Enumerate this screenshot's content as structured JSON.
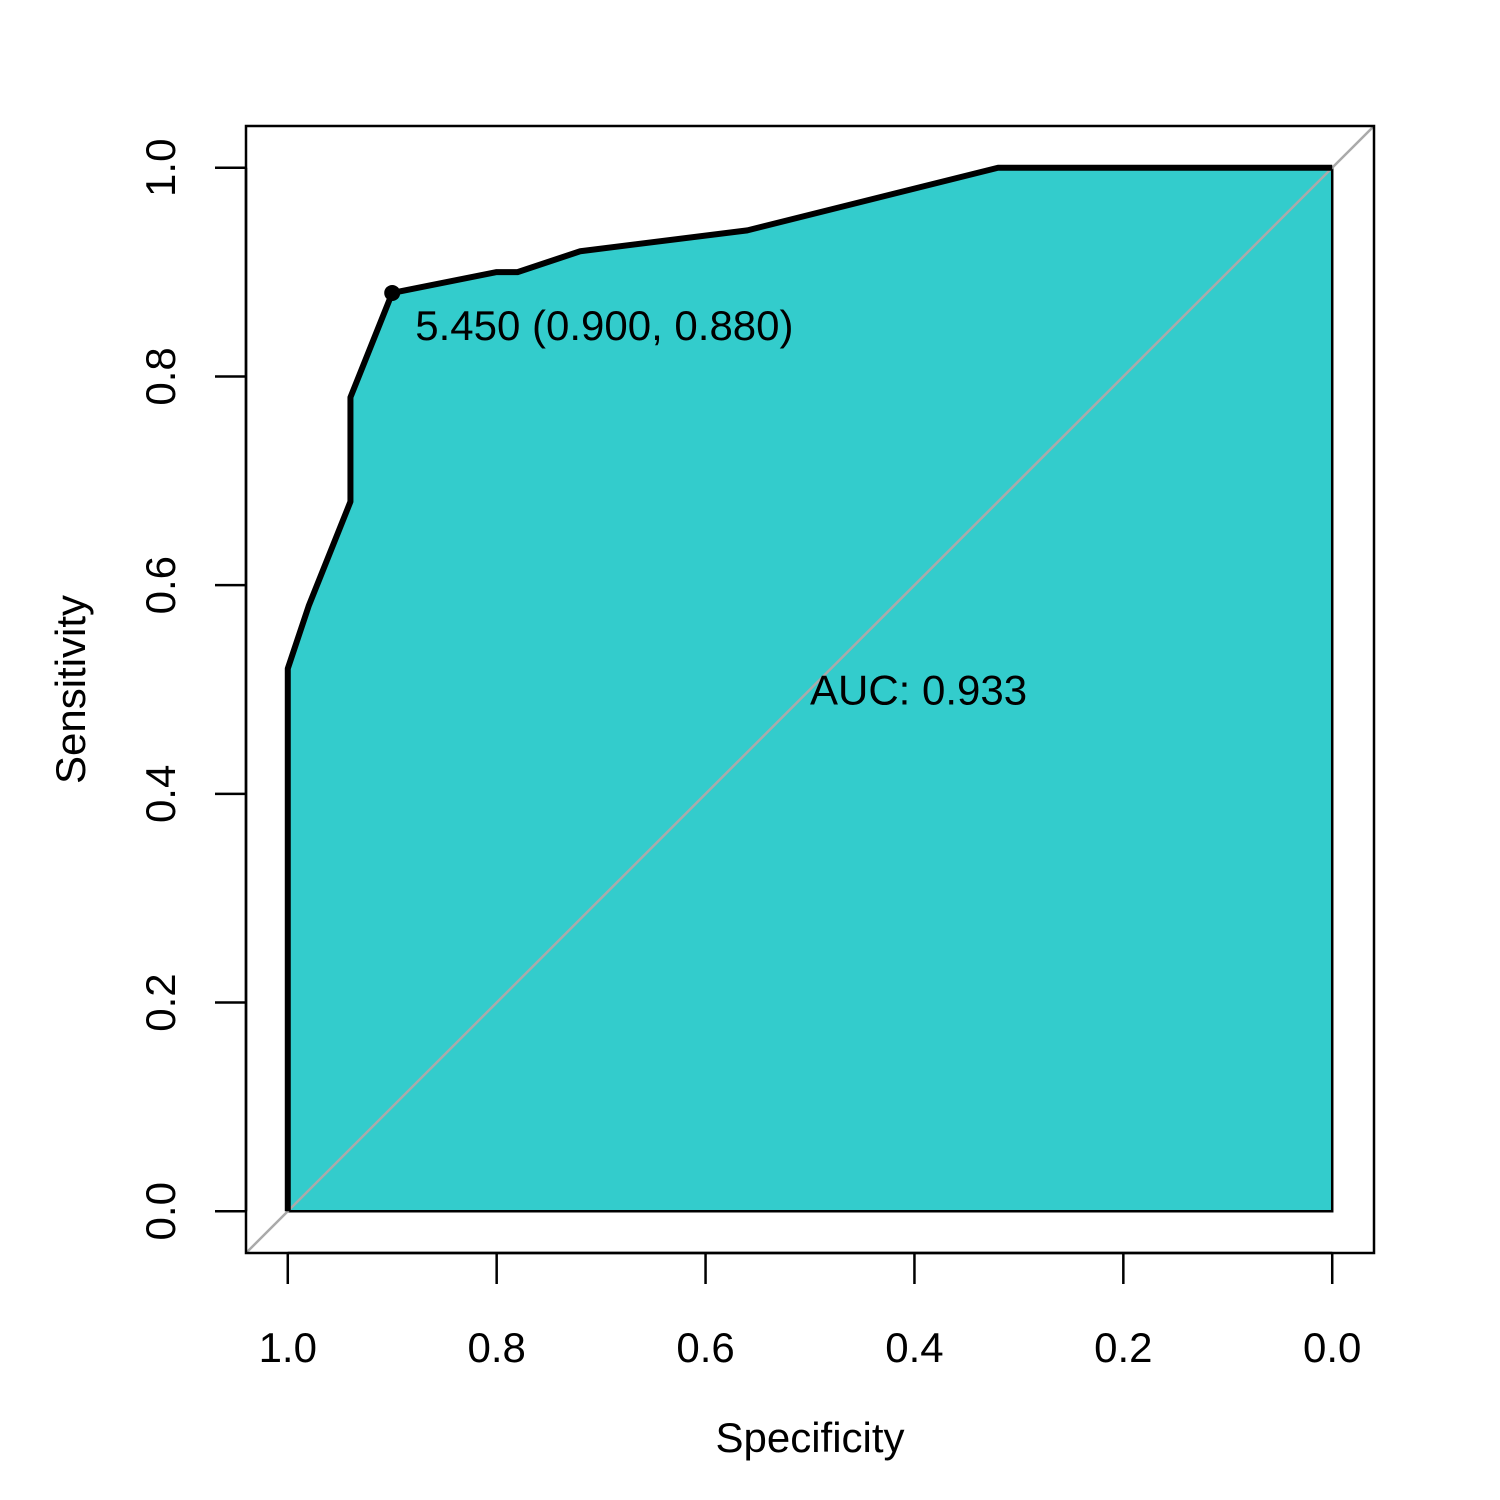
{
  "chart_data": {
    "type": "line",
    "xlabel": "Specificity",
    "ylabel": "Sensitivity",
    "xlim": [
      1.04,
      -0.04
    ],
    "ylim": [
      -0.04,
      1.04
    ],
    "x_reversed": true,
    "x_ticks": [
      1.0,
      0.8,
      0.6,
      0.4,
      0.2,
      0.0
    ],
    "x_tick_labels": [
      "1.0",
      "0.8",
      "0.6",
      "0.4",
      "0.2",
      "0.0"
    ],
    "y_ticks": [
      0.0,
      0.2,
      0.4,
      0.6,
      0.8,
      1.0
    ],
    "y_tick_labels": [
      "0.0",
      "0.2",
      "0.4",
      "0.6",
      "0.8",
      "1.0"
    ],
    "grid": false,
    "series": [
      {
        "x": [
          1.0,
          1.0,
          0.98,
          0.94,
          0.94,
          0.9,
          0.8,
          0.78,
          0.72,
          0.56,
          0.32,
          0.0
        ],
        "y": [
          0.0,
          0.52,
          0.58,
          0.68,
          0.78,
          0.88,
          0.9,
          0.9,
          0.92,
          0.94,
          1.0,
          1.0
        ]
      }
    ],
    "reference_line": {
      "x": [
        1.04,
        -0.04
      ],
      "y": [
        -0.04,
        1.04
      ],
      "color": "#aaaaaa"
    },
    "best_threshold": {
      "x": 0.9,
      "y": 0.88,
      "label": "5.450 (0.900, 0.880)"
    },
    "auc_label": {
      "x": 0.5,
      "y": 0.5,
      "text": "AUC: 0.933"
    },
    "colors": {
      "fill": "#33cccc",
      "line": "#000000",
      "axis": "#000000"
    }
  }
}
